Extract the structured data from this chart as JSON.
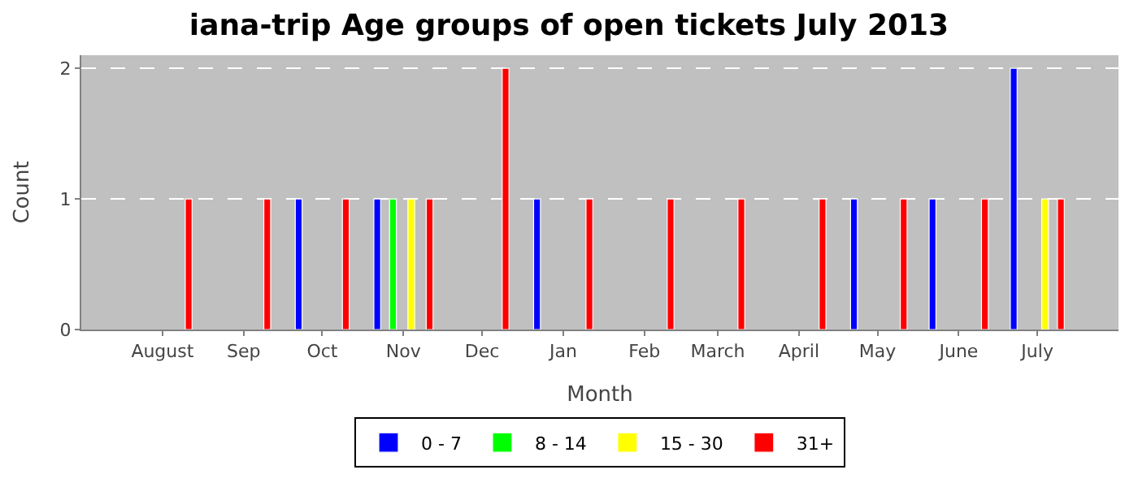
{
  "chart_data": {
    "type": "bar",
    "title": "iana-trip Age groups of open tickets July 2013",
    "xlabel": "Month",
    "ylabel": "Count",
    "xlim": [
      "2012-07-01",
      "2013-08-01"
    ],
    "xticks": [
      {
        "value": "2012-08-01",
        "label": "August"
      },
      {
        "value": "2012-09-01",
        "label": "Sep"
      },
      {
        "value": "2012-10-01",
        "label": "Oct"
      },
      {
        "value": "2012-11-01",
        "label": "Nov"
      },
      {
        "value": "2012-12-01",
        "label": "Dec"
      },
      {
        "value": "2013-01-01",
        "label": "Jan"
      },
      {
        "value": "2013-02-01",
        "label": "Feb"
      },
      {
        "value": "2013-03-01",
        "label": "March"
      },
      {
        "value": "2013-04-01",
        "label": "April"
      },
      {
        "value": "2013-05-01",
        "label": "May"
      },
      {
        "value": "2013-06-01",
        "label": "June"
      },
      {
        "value": "2013-07-01",
        "label": "July"
      }
    ],
    "ylim": [
      0,
      2.1
    ],
    "yticks": [
      0,
      1,
      2
    ],
    "grid": "y",
    "legend": "bottom",
    "series": [
      {
        "name": "0 - 7",
        "color": "#0000ff",
        "x": [
          "2012-09-22",
          "2012-10-22",
          "2012-12-22",
          "2013-04-22",
          "2013-05-22",
          "2013-06-22"
        ],
        "values": [
          1,
          1,
          1,
          1,
          1,
          2
        ]
      },
      {
        "name": "8 - 14",
        "color": "#00ff00",
        "x": [
          "2012-10-28"
        ],
        "values": [
          1
        ]
      },
      {
        "name": "15 - 30",
        "color": "#ffff00",
        "x": [
          "2012-11-04",
          "2013-07-04"
        ],
        "values": [
          1,
          1
        ]
      },
      {
        "name": "31+",
        "color": "#ff0000",
        "x": [
          "2012-08-11",
          "2012-09-10",
          "2012-10-10",
          "2012-11-11",
          "2012-12-10",
          "2013-01-11",
          "2013-02-11",
          "2013-03-10",
          "2013-04-10",
          "2013-05-11",
          "2013-06-11",
          "2013-07-10"
        ],
        "values": [
          1,
          1,
          1,
          1,
          2,
          1,
          1,
          1,
          1,
          1,
          1,
          1
        ]
      }
    ]
  }
}
